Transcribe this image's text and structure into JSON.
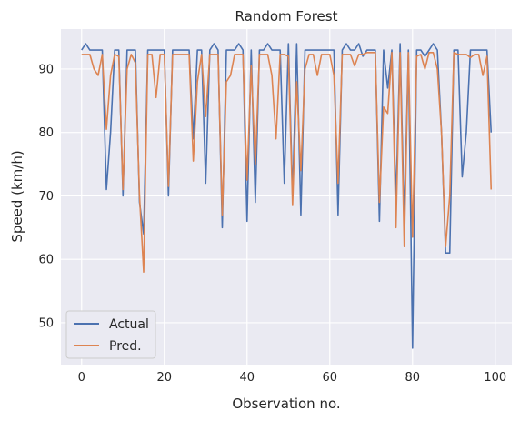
{
  "chart_data": {
    "type": "line",
    "title": "Random Forest",
    "xlabel": "Observation no.",
    "ylabel": "Speed (km/h)",
    "xlim": [
      -5,
      104
    ],
    "ylim": [
      43.4,
      96.3
    ],
    "xticks": [
      0,
      20,
      40,
      60,
      80,
      100
    ],
    "yticks": [
      50,
      60,
      70,
      80,
      90
    ],
    "grid": true,
    "legend_position": "lower-left",
    "x": [
      0,
      1,
      2,
      3,
      4,
      5,
      6,
      7,
      8,
      9,
      10,
      11,
      12,
      13,
      14,
      15,
      16,
      17,
      18,
      19,
      20,
      21,
      22,
      23,
      24,
      25,
      26,
      27,
      28,
      29,
      30,
      31,
      32,
      33,
      34,
      35,
      36,
      37,
      38,
      39,
      40,
      41,
      42,
      43,
      44,
      45,
      46,
      47,
      48,
      49,
      50,
      51,
      52,
      53,
      54,
      55,
      56,
      57,
      58,
      59,
      60,
      61,
      62,
      63,
      64,
      65,
      66,
      67,
      68,
      69,
      70,
      71,
      72,
      73,
      74,
      75,
      76,
      77,
      78,
      79,
      80,
      81,
      82,
      83,
      84,
      85,
      86,
      87,
      88,
      89,
      90,
      91,
      92,
      93,
      94,
      95,
      96,
      97,
      98,
      99
    ],
    "series": [
      {
        "name": "Actual",
        "color": "#4c72b0",
        "values": [
          93,
          94,
          93,
          93,
          93,
          93,
          71,
          80,
          93,
          93,
          70,
          93,
          93,
          93,
          69,
          64,
          93,
          93,
          93,
          93,
          93,
          70,
          93,
          93,
          93,
          93,
          93,
          79,
          93,
          93,
          72,
          93,
          94,
          93,
          65,
          93,
          93,
          93,
          94,
          93,
          66,
          93,
          69,
          93,
          93,
          94,
          93,
          93,
          93,
          72,
          94,
          70,
          94,
          67,
          93,
          93,
          93,
          93,
          93,
          93,
          93,
          93,
          67,
          93,
          94,
          93,
          93,
          94,
          92,
          93,
          93,
          93,
          66,
          93,
          87,
          93,
          69,
          94,
          66,
          93,
          46,
          93,
          93,
          92,
          93,
          94,
          93,
          80,
          61,
          61,
          93,
          93,
          73,
          80,
          93,
          93,
          93,
          93,
          93,
          80
        ]
      },
      {
        "name": "Pred.",
        "color": "#dd8452",
        "values": [
          92.3,
          92.3,
          92.3,
          90,
          89,
          92.3,
          80.5,
          89,
          92.3,
          92,
          71,
          90,
          92.3,
          91,
          70,
          58,
          92.3,
          92.3,
          85.5,
          92.3,
          92.3,
          71.5,
          92.3,
          92.3,
          92.3,
          92.3,
          92.3,
          75.5,
          88,
          92.3,
          82.5,
          92.3,
          92.3,
          92.3,
          67,
          88,
          89,
          92.3,
          92.3,
          92.3,
          72.5,
          90.5,
          75,
          92.3,
          92.3,
          92.3,
          89,
          79,
          92.3,
          92.3,
          92,
          68.5,
          88,
          74,
          90,
          92.3,
          92.3,
          89,
          92.3,
          92.3,
          92.3,
          89,
          72,
          92.3,
          92.3,
          92.3,
          90.5,
          92.3,
          92.3,
          92.6,
          92.6,
          92.6,
          69,
          84,
          83,
          92.6,
          65,
          92.6,
          62,
          92.6,
          63.5,
          92,
          92.3,
          90,
          92.6,
          92.6,
          90,
          80,
          62,
          70,
          92.6,
          92.3,
          92.3,
          92.3,
          91.8,
          92.3,
          92.3,
          89,
          92,
          71
        ]
      }
    ]
  }
}
